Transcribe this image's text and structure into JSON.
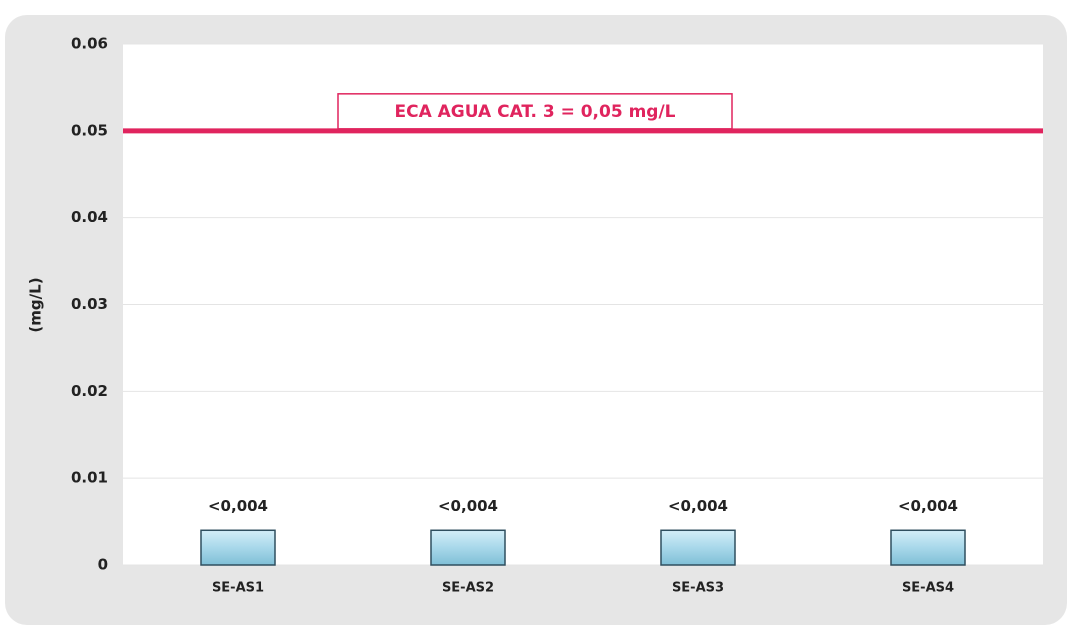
{
  "chart_data": {
    "type": "bar",
    "y_label": "(mg/L)",
    "categories": [
      "SE-AS1",
      "SE-AS2",
      "SE-AS3",
      "SE-AS4"
    ],
    "values": [
      0.004,
      0.004,
      0.004,
      0.004
    ],
    "value_labels": [
      "<0,004",
      "<0,004",
      "<0,004",
      "<0,004"
    ],
    "color": "#a8d8ea",
    "ylim": [
      0,
      0.06
    ],
    "yticks": [
      0,
      0.01,
      0.02,
      0.03,
      0.04,
      0.05,
      0.06
    ],
    "grid": true,
    "reference_line": {
      "value": 0.05,
      "label": "ECA AGUA CAT. 3 = 0,05 mg/L",
      "color": "#e0245e"
    }
  }
}
